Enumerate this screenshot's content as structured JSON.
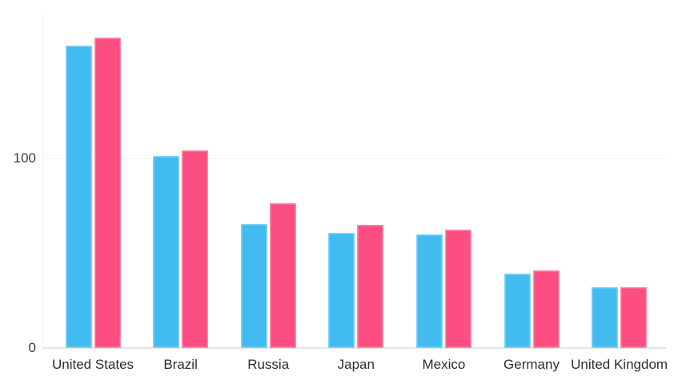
{
  "chart_data": {
    "type": "bar",
    "categories": [
      "United States",
      "Brazil",
      "Russia",
      "Japan",
      "Mexico",
      "Germany",
      "United Kingdom"
    ],
    "series": [
      {
        "name": "blue",
        "color": "#42bcf0",
        "values": [
          160,
          101.5,
          65.5,
          61,
          60,
          39.5,
          32
        ]
      },
      {
        "name": "pink",
        "color": "#fc4e80",
        "values": [
          164,
          104.5,
          76.5,
          65,
          62.5,
          41,
          32.3
        ]
      }
    ],
    "title": "",
    "xlabel": "",
    "ylabel": "",
    "ylim": [
      0,
      178
    ],
    "y_ticks": [
      {
        "value": 100,
        "label": "100"
      },
      {
        "value": 0,
        "label": "0"
      }
    ],
    "grid": "horizontal",
    "legend": "none",
    "background": "#ffffff",
    "gridline_color": "#f0f0f0",
    "baseline_color": "#e5e5e5",
    "y_axis_line_color": "#efefef",
    "tick_label_color": "#3b3b3b",
    "category_label_color": "#2d2d2d"
  }
}
